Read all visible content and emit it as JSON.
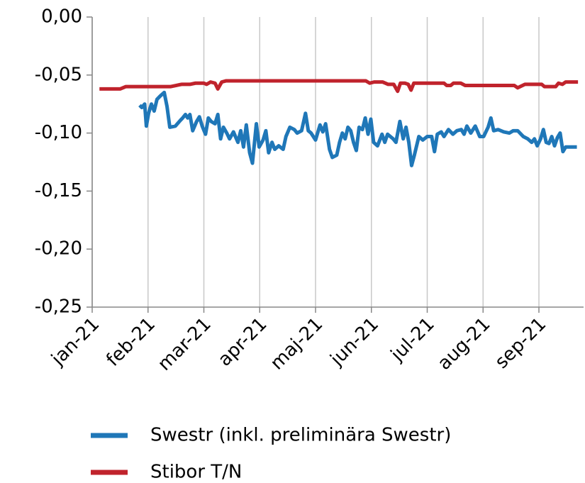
{
  "chart_data": {
    "type": "line",
    "xlim": [
      0,
      8.8
    ],
    "xticks": [
      {
        "value": 0,
        "label": "jan-21"
      },
      {
        "value": 1,
        "label": "feb-21"
      },
      {
        "value": 2,
        "label": "mar-21"
      },
      {
        "value": 3,
        "label": "apr-21"
      },
      {
        "value": 4,
        "label": "maj-21"
      },
      {
        "value": 5,
        "label": "jun-21"
      },
      {
        "value": 6,
        "label": "jul-21"
      },
      {
        "value": 7,
        "label": "aug-21"
      },
      {
        "value": 8,
        "label": "sep-21"
      }
    ],
    "ylim": [
      -0.25,
      0
    ],
    "yticks": [
      {
        "value": 0,
        "label": "0,00"
      },
      {
        "value": -0.05,
        "label": "-0,05"
      },
      {
        "value": -0.1,
        "label": "-0,10"
      },
      {
        "value": -0.15,
        "label": "-0,15"
      },
      {
        "value": -0.2,
        "label": "-0,20"
      },
      {
        "value": -0.25,
        "label": "-0,25"
      }
    ],
    "grid": true,
    "series": [
      {
        "name": "Swestr (inkl. preliminära Swestr)",
        "color": "#1f77b8",
        "x": [
          0.85,
          0.89,
          0.94,
          0.97,
          1.01,
          1.06,
          1.11,
          1.16,
          1.22,
          1.29,
          1.34,
          1.39,
          1.49,
          1.58,
          1.62,
          1.67,
          1.71,
          1.75,
          1.8,
          1.87,
          1.92,
          1.97,
          2.03,
          2.08,
          2.13,
          2.2,
          2.25,
          2.3,
          2.35,
          2.41,
          2.46,
          2.53,
          2.61,
          2.66,
          2.71,
          2.76,
          2.82,
          2.87,
          2.94,
          2.99,
          3.06,
          3.11,
          3.16,
          3.22,
          3.27,
          3.34,
          3.42,
          3.47,
          3.54,
          3.62,
          3.67,
          3.75,
          3.82,
          3.87,
          3.92,
          4.0,
          4.08,
          4.13,
          4.18,
          4.25,
          4.3,
          4.38,
          4.43,
          4.48,
          4.53,
          4.58,
          4.63,
          4.68,
          4.73,
          4.78,
          4.84,
          4.89,
          4.94,
          4.99,
          5.04,
          5.11,
          5.19,
          5.24,
          5.29,
          5.39,
          5.44,
          5.51,
          5.57,
          5.62,
          5.67,
          5.72,
          5.77,
          5.85,
          5.92,
          6.0,
          6.08,
          6.13,
          6.18,
          6.25,
          6.3,
          6.38,
          6.46,
          6.53,
          6.61,
          6.66,
          6.71,
          6.78,
          6.86,
          6.94,
          7.01,
          7.09,
          7.14,
          7.19,
          7.27,
          7.37,
          7.47,
          7.54,
          7.62,
          7.72,
          7.8,
          7.87,
          7.92,
          7.97,
          8.03,
          8.08,
          8.13,
          8.18,
          8.23,
          8.28,
          8.33,
          8.38,
          8.43,
          8.48,
          8.53,
          8.58,
          8.68
        ],
        "values": [
          -0.076,
          -0.078,
          -0.075,
          -0.094,
          -0.083,
          -0.075,
          -0.081,
          -0.071,
          -0.068,
          -0.065,
          -0.077,
          -0.095,
          -0.094,
          -0.089,
          -0.087,
          -0.084,
          -0.087,
          -0.084,
          -0.098,
          -0.09,
          -0.086,
          -0.094,
          -0.101,
          -0.087,
          -0.09,
          -0.092,
          -0.084,
          -0.105,
          -0.095,
          -0.1,
          -0.105,
          -0.099,
          -0.108,
          -0.098,
          -0.112,
          -0.093,
          -0.117,
          -0.126,
          -0.092,
          -0.112,
          -0.106,
          -0.098,
          -0.117,
          -0.108,
          -0.114,
          -0.111,
          -0.114,
          -0.103,
          -0.095,
          -0.097,
          -0.1,
          -0.098,
          -0.083,
          -0.098,
          -0.1,
          -0.106,
          -0.093,
          -0.099,
          -0.092,
          -0.114,
          -0.121,
          -0.119,
          -0.108,
          -0.1,
          -0.105,
          -0.095,
          -0.098,
          -0.108,
          -0.115,
          -0.095,
          -0.097,
          -0.087,
          -0.101,
          -0.088,
          -0.108,
          -0.111,
          -0.101,
          -0.108,
          -0.101,
          -0.105,
          -0.108,
          -0.09,
          -0.105,
          -0.095,
          -0.108,
          -0.128,
          -0.119,
          -0.103,
          -0.106,
          -0.103,
          -0.103,
          -0.116,
          -0.101,
          -0.099,
          -0.103,
          -0.097,
          -0.101,
          -0.098,
          -0.097,
          -0.101,
          -0.094,
          -0.1,
          -0.094,
          -0.103,
          -0.103,
          -0.095,
          -0.087,
          -0.098,
          -0.097,
          -0.099,
          -0.1,
          -0.098,
          -0.098,
          -0.103,
          -0.105,
          -0.108,
          -0.105,
          -0.111,
          -0.105,
          -0.097,
          -0.108,
          -0.109,
          -0.103,
          -0.111,
          -0.104,
          -0.1,
          -0.116,
          -0.112,
          -0.112,
          -0.112,
          -0.112
        ]
      },
      {
        "name": "Stibor T/N",
        "color": "#c0232c",
        "x": [
          0.13,
          0.5,
          0.6,
          1.4,
          1.5,
          1.6,
          1.75,
          1.85,
          2.0,
          2.05,
          2.12,
          2.2,
          2.25,
          2.32,
          2.4,
          4.9,
          4.97,
          5.05,
          5.2,
          5.3,
          5.4,
          5.47,
          5.52,
          5.6,
          5.66,
          5.71,
          5.76,
          6.3,
          6.35,
          6.42,
          6.47,
          6.6,
          6.68,
          7.5,
          7.56,
          7.62,
          7.75,
          8.05,
          8.1,
          8.3,
          8.35,
          8.42,
          8.48,
          8.7
        ],
        "values": [
          -0.062,
          -0.062,
          -0.06,
          -0.06,
          -0.059,
          -0.058,
          -0.058,
          -0.057,
          -0.057,
          -0.058,
          -0.056,
          -0.057,
          -0.062,
          -0.056,
          -0.055,
          -0.055,
          -0.057,
          -0.056,
          -0.056,
          -0.058,
          -0.058,
          -0.064,
          -0.057,
          -0.057,
          -0.058,
          -0.063,
          -0.057,
          -0.057,
          -0.059,
          -0.059,
          -0.057,
          -0.057,
          -0.059,
          -0.059,
          -0.059,
          -0.061,
          -0.058,
          -0.058,
          -0.06,
          -0.06,
          -0.057,
          -0.058,
          -0.056,
          -0.056
        ]
      }
    ]
  }
}
